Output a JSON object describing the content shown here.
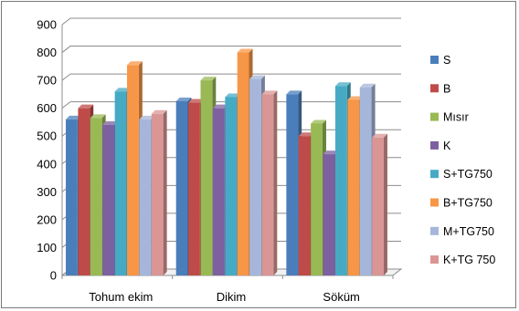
{
  "chart_data": {
    "type": "bar",
    "title": "",
    "xlabel": "",
    "ylabel": "",
    "ylim": [
      0,
      900
    ],
    "yticks": [
      0,
      100,
      200,
      300,
      400,
      500,
      600,
      700,
      800,
      900
    ],
    "grid": true,
    "legend_position": "right",
    "three_d": true,
    "categories": [
      "Tohum ekim",
      "Dikim",
      "Söküm"
    ],
    "series": [
      {
        "name": "S",
        "color": "#4a7ebb",
        "values": [
          560,
          625,
          650
        ]
      },
      {
        "name": "B",
        "color": "#be4b48",
        "values": [
          600,
          620,
          500
        ]
      },
      {
        "name": "Mısır",
        "color": "#98b954",
        "values": [
          565,
          700,
          545
        ]
      },
      {
        "name": "K",
        "color": "#7d60a0",
        "values": [
          540,
          600,
          435
        ]
      },
      {
        "name": "S+TG750",
        "color": "#46aac5",
        "values": [
          660,
          640,
          680
        ]
      },
      {
        "name": "B+TG750",
        "color": "#f79646",
        "values": [
          755,
          800,
          630
        ]
      },
      {
        "name": "M+TG750",
        "color": "#a5b6da",
        "values": [
          560,
          705,
          675
        ]
      },
      {
        "name": "K+TG 750",
        "color": "#d99694",
        "values": [
          580,
          650,
          495
        ]
      }
    ]
  }
}
